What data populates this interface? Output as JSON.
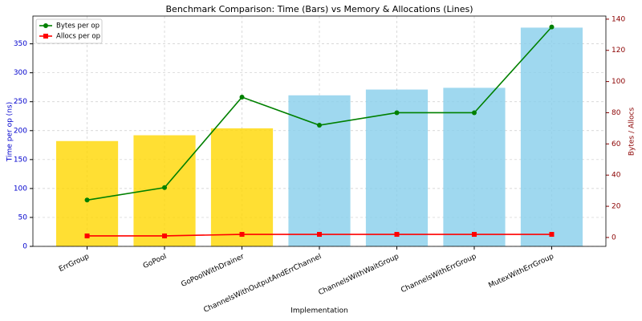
{
  "chart_data": {
    "type": "bar_line",
    "title": "Benchmark Comparison: Time (Bars) vs Memory & Allocations (Lines)",
    "x_label": "Implementation",
    "y_label": "Time per op (ns)",
    "y2_label": "Bytes / Allocs",
    "categories": [
      "ErrGroup",
      "GoPool",
      "GoPoolWithDrainer",
      "ChannelsWithOutputAndErrChannel",
      "ChannelsWithWaitGroup",
      "ChannelsWithErrGroup",
      "MutexWithErrGroup"
    ],
    "bar_values": [
      182,
      192,
      204,
      261,
      271,
      274,
      378
    ],
    "bar_colors": [
      "#ffd700",
      "#ffd700",
      "#ffd700",
      "#87ceeb",
      "#87ceeb",
      "#87ceeb",
      "#87ceeb"
    ],
    "series": [
      {
        "name": "Bytes per op",
        "color": "#008000",
        "marker": "circle",
        "axis": "y2",
        "values": [
          24,
          32,
          90,
          72,
          80,
          80,
          135
        ]
      },
      {
        "name": "Allocs per op",
        "color": "#ff0000",
        "marker": "square",
        "axis": "y2",
        "values": [
          1,
          1,
          2,
          2,
          2,
          2,
          2
        ]
      }
    ],
    "ylim": [
      0,
      398
    ],
    "yticks": [
      0,
      50,
      100,
      150,
      200,
      250,
      300,
      350
    ],
    "y2lim": [
      -5.7,
      142
    ],
    "y2ticks": [
      0,
      20,
      40,
      60,
      80,
      100,
      120,
      140
    ],
    "y_color": "#0000cd",
    "y2_color": "#8b0000",
    "grid": true,
    "legend": "upper-left"
  }
}
